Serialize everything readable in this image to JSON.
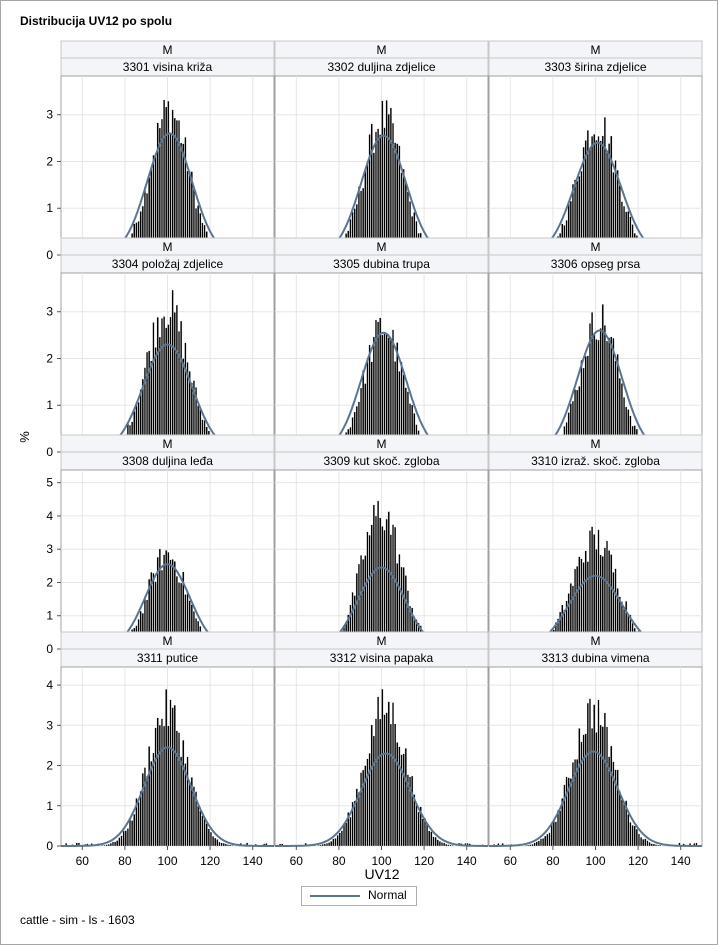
{
  "title": "Distribucija UV12 po spolu",
  "footnote": "cattle - sim - ls - 1603",
  "colors": {
    "bar": "#000000",
    "normal_curve": "#5b7591",
    "header_bg": "#f3f5f8",
    "grid": "#e6e6e6"
  },
  "chart_data": {
    "type": "histogram-panel",
    "xlabel": "UV12",
    "ylabel": "%",
    "xlim": [
      50,
      150
    ],
    "xticks": [
      60,
      80,
      100,
      120,
      140
    ],
    "legend": {
      "position": "bottom-center",
      "entries": [
        "Normal"
      ]
    },
    "grid": true,
    "rows": [
      {
        "ylim": [
          0,
          3.7
        ],
        "yticks": [
          0,
          1,
          2,
          3
        ]
      },
      {
        "ylim": [
          0,
          3.7
        ],
        "yticks": [
          0,
          1,
          2,
          3
        ]
      },
      {
        "ylim": [
          0,
          5.2
        ],
        "yticks": [
          0,
          1,
          2,
          3,
          4,
          5
        ]
      },
      {
        "ylim": [
          0,
          4.3
        ],
        "yticks": [
          0,
          1,
          2,
          3,
          4
        ]
      }
    ],
    "panels": [
      {
        "group": "M",
        "label": "3301 visina križa",
        "peak": 3.6,
        "mean": 101,
        "sd": 10.5,
        "normal_peak": 2.6
      },
      {
        "group": "M",
        "label": "3302 duljina zdjelice",
        "peak": 3.4,
        "mean": 101,
        "sd": 10.5,
        "normal_peak": 2.55
      },
      {
        "group": "M",
        "label": "3303 širina zdjelice",
        "peak": 3.3,
        "mean": 101,
        "sd": 11.0,
        "normal_peak": 2.4
      },
      {
        "group": "M",
        "label": "3304 položaj zdjelice",
        "peak": 3.6,
        "mean": 100,
        "sd": 11.5,
        "normal_peak": 2.3
      },
      {
        "group": "M",
        "label": "3305 dubina trupa",
        "peak": 3.1,
        "mean": 101,
        "sd": 10.5,
        "normal_peak": 2.55
      },
      {
        "group": "M",
        "label": "3306 opseg prsa",
        "peak": 3.3,
        "mean": 102,
        "sd": 10.5,
        "normal_peak": 2.6
      },
      {
        "group": "M",
        "label": "3308 duljina leđa",
        "peak": 3.3,
        "mean": 100,
        "sd": 10.5,
        "normal_peak": 2.55
      },
      {
        "group": "M",
        "label": "3309 kut skoč. zgloba",
        "peak": 4.8,
        "mean": 100,
        "sd": 11.0,
        "normal_peak": 2.45
      },
      {
        "group": "M",
        "label": "3310 izraž. skoč. zgloba",
        "peak": 3.8,
        "mean": 100,
        "sd": 12.5,
        "normal_peak": 2.2
      },
      {
        "group": "M",
        "label": "3311 putice",
        "peak": 3.9,
        "mean": 100,
        "sd": 11.0,
        "normal_peak": 2.45
      },
      {
        "group": "M",
        "label": "3312 visina papaka",
        "peak": 4.0,
        "mean": 102,
        "sd": 11.5,
        "normal_peak": 2.3
      },
      {
        "group": "M",
        "label": "3313 dubina vimena",
        "peak": 3.9,
        "mean": 99,
        "sd": 11.5,
        "normal_peak": 2.35
      }
    ]
  }
}
